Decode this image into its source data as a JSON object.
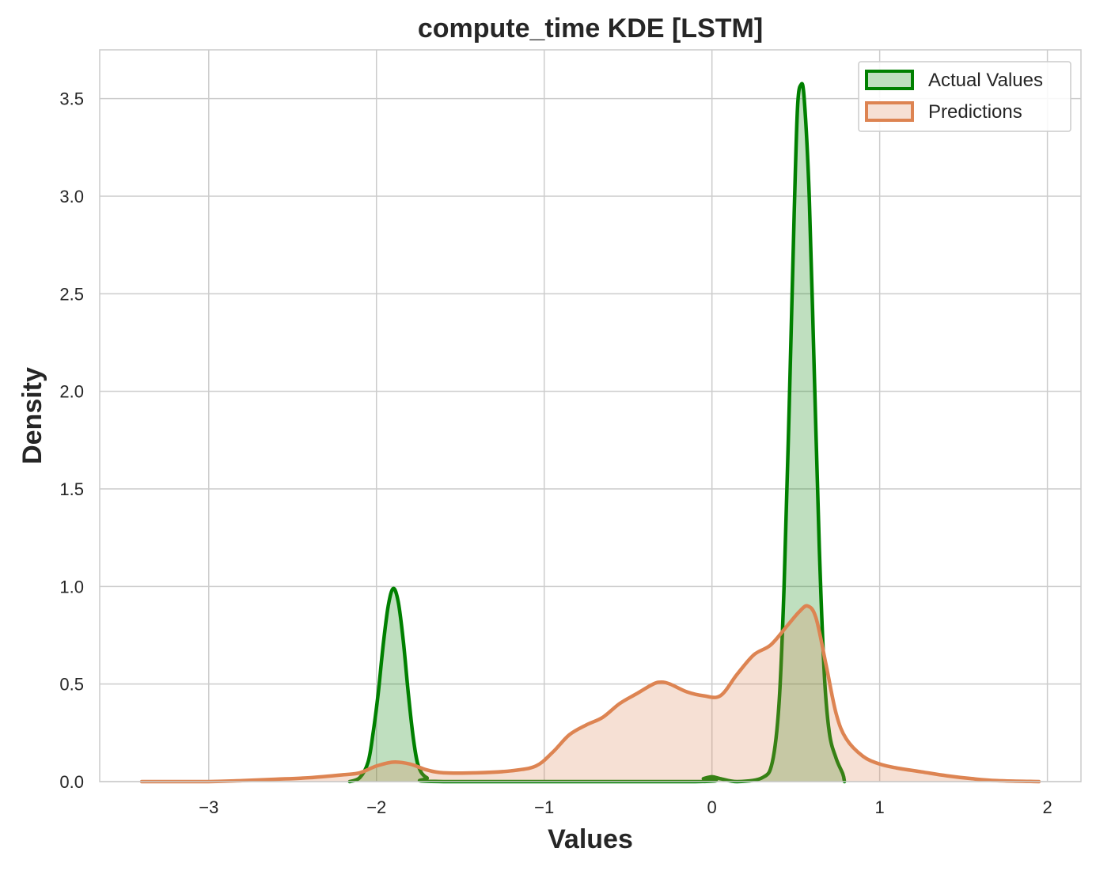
{
  "chart_data": {
    "type": "area",
    "title": "compute_time KDE [LSTM]",
    "xlabel": "Values",
    "ylabel": "Density",
    "xlim": [
      -3.65,
      2.2
    ],
    "ylim": [
      0,
      3.75
    ],
    "x_ticks": [
      -3,
      -2,
      -1,
      0,
      1,
      2
    ],
    "x_tick_labels": [
      "−3",
      "−2",
      "−1",
      "0",
      "1",
      "2"
    ],
    "y_ticks": [
      0,
      0.5,
      1,
      1.5,
      2,
      2.5,
      3,
      3.5
    ],
    "y_tick_labels": [
      "0.0",
      "0.5",
      "1.0",
      "1.5",
      "2.0",
      "2.5",
      "3.0",
      "3.5"
    ],
    "grid": true,
    "legend_position": "top-right",
    "series": [
      {
        "name": "Actual Values",
        "color": "#008000",
        "fill_color": "#008000",
        "fill_opacity": 0.25,
        "points": [
          [
            -2.16,
            0.0
          ],
          [
            -2.1,
            0.02
          ],
          [
            -2.05,
            0.1
          ],
          [
            -2.02,
            0.25
          ],
          [
            -1.99,
            0.45
          ],
          [
            -1.96,
            0.7
          ],
          [
            -1.93,
            0.9
          ],
          [
            -1.9,
            0.99
          ],
          [
            -1.87,
            0.92
          ],
          [
            -1.84,
            0.72
          ],
          [
            -1.81,
            0.45
          ],
          [
            -1.78,
            0.22
          ],
          [
            -1.75,
            0.08
          ],
          [
            -1.7,
            0.02
          ],
          [
            -1.6,
            0.0
          ],
          [
            -0.1,
            0.0
          ],
          [
            -0.05,
            0.015
          ],
          [
            0.0,
            0.025
          ],
          [
            0.05,
            0.015
          ],
          [
            0.15,
            0.0
          ],
          [
            0.3,
            0.02
          ],
          [
            0.36,
            0.1
          ],
          [
            0.4,
            0.4
          ],
          [
            0.43,
            1.0
          ],
          [
            0.46,
            1.9
          ],
          [
            0.49,
            2.9
          ],
          [
            0.51,
            3.45
          ],
          [
            0.53,
            3.57
          ],
          [
            0.55,
            3.5
          ],
          [
            0.58,
            3.0
          ],
          [
            0.61,
            2.1
          ],
          [
            0.64,
            1.2
          ],
          [
            0.67,
            0.55
          ],
          [
            0.7,
            0.25
          ],
          [
            0.74,
            0.12
          ],
          [
            0.78,
            0.04
          ],
          [
            0.79,
            0.0
          ]
        ]
      },
      {
        "name": "Predictions",
        "color": "#dd8452",
        "fill_color": "#dd8452",
        "fill_opacity": 0.25,
        "points": [
          [
            -3.4,
            0.0
          ],
          [
            -3.0,
            0.0
          ],
          [
            -2.8,
            0.005
          ],
          [
            -2.6,
            0.012
          ],
          [
            -2.4,
            0.02
          ],
          [
            -2.2,
            0.035
          ],
          [
            -2.1,
            0.045
          ],
          [
            -2.0,
            0.08
          ],
          [
            -1.9,
            0.1
          ],
          [
            -1.8,
            0.09
          ],
          [
            -1.7,
            0.06
          ],
          [
            -1.6,
            0.045
          ],
          [
            -1.4,
            0.045
          ],
          [
            -1.2,
            0.055
          ],
          [
            -1.05,
            0.08
          ],
          [
            -0.95,
            0.15
          ],
          [
            -0.85,
            0.24
          ],
          [
            -0.75,
            0.29
          ],
          [
            -0.65,
            0.33
          ],
          [
            -0.55,
            0.4
          ],
          [
            -0.45,
            0.45
          ],
          [
            -0.35,
            0.5
          ],
          [
            -0.3,
            0.51
          ],
          [
            -0.25,
            0.5
          ],
          [
            -0.15,
            0.46
          ],
          [
            -0.05,
            0.44
          ],
          [
            0.05,
            0.44
          ],
          [
            0.15,
            0.55
          ],
          [
            0.25,
            0.65
          ],
          [
            0.35,
            0.7
          ],
          [
            0.45,
            0.8
          ],
          [
            0.52,
            0.87
          ],
          [
            0.57,
            0.9
          ],
          [
            0.62,
            0.84
          ],
          [
            0.68,
            0.6
          ],
          [
            0.74,
            0.35
          ],
          [
            0.8,
            0.22
          ],
          [
            0.9,
            0.13
          ],
          [
            1.0,
            0.09
          ],
          [
            1.1,
            0.07
          ],
          [
            1.25,
            0.05
          ],
          [
            1.4,
            0.03
          ],
          [
            1.55,
            0.015
          ],
          [
            1.7,
            0.005
          ],
          [
            1.95,
            0.0
          ]
        ]
      }
    ]
  }
}
